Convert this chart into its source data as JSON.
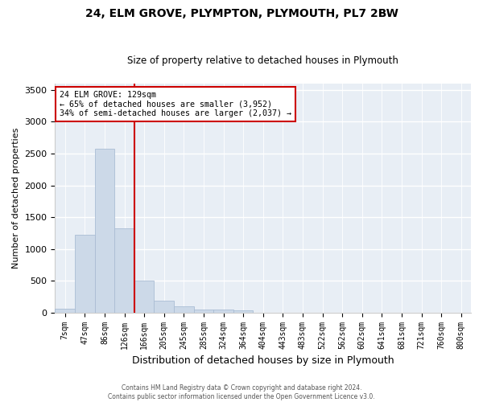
{
  "title1": "24, ELM GROVE, PLYMPTON, PLYMOUTH, PL7 2BW",
  "title2": "Size of property relative to detached houses in Plymouth",
  "xlabel": "Distribution of detached houses by size in Plymouth",
  "ylabel": "Number of detached properties",
  "bar_labels": [
    "7sqm",
    "47sqm",
    "86sqm",
    "126sqm",
    "166sqm",
    "205sqm",
    "245sqm",
    "285sqm",
    "324sqm",
    "364sqm",
    "404sqm",
    "443sqm",
    "483sqm",
    "522sqm",
    "562sqm",
    "602sqm",
    "641sqm",
    "681sqm",
    "721sqm",
    "760sqm",
    "800sqm"
  ],
  "bar_values": [
    55,
    1220,
    2580,
    1330,
    500,
    190,
    100,
    50,
    45,
    30,
    0,
    0,
    0,
    0,
    0,
    0,
    0,
    0,
    0,
    0,
    0
  ],
  "bar_color": "#ccd9e8",
  "bar_edge_color": "#aabdd4",
  "vline_color": "#cc0000",
  "annotation_text": "24 ELM GROVE: 129sqm\n← 65% of detached houses are smaller (3,952)\n34% of semi-detached houses are larger (2,037) →",
  "annotation_box_color": "#ffffff",
  "annotation_box_edge": "#cc0000",
  "ylim": [
    0,
    3600
  ],
  "yticks": [
    0,
    500,
    1000,
    1500,
    2000,
    2500,
    3000,
    3500
  ],
  "footer1": "Contains HM Land Registry data © Crown copyright and database right 2024.",
  "footer2": "Contains public sector information licensed under the Open Government Licence v3.0.",
  "bg_color": "#e8eef5"
}
